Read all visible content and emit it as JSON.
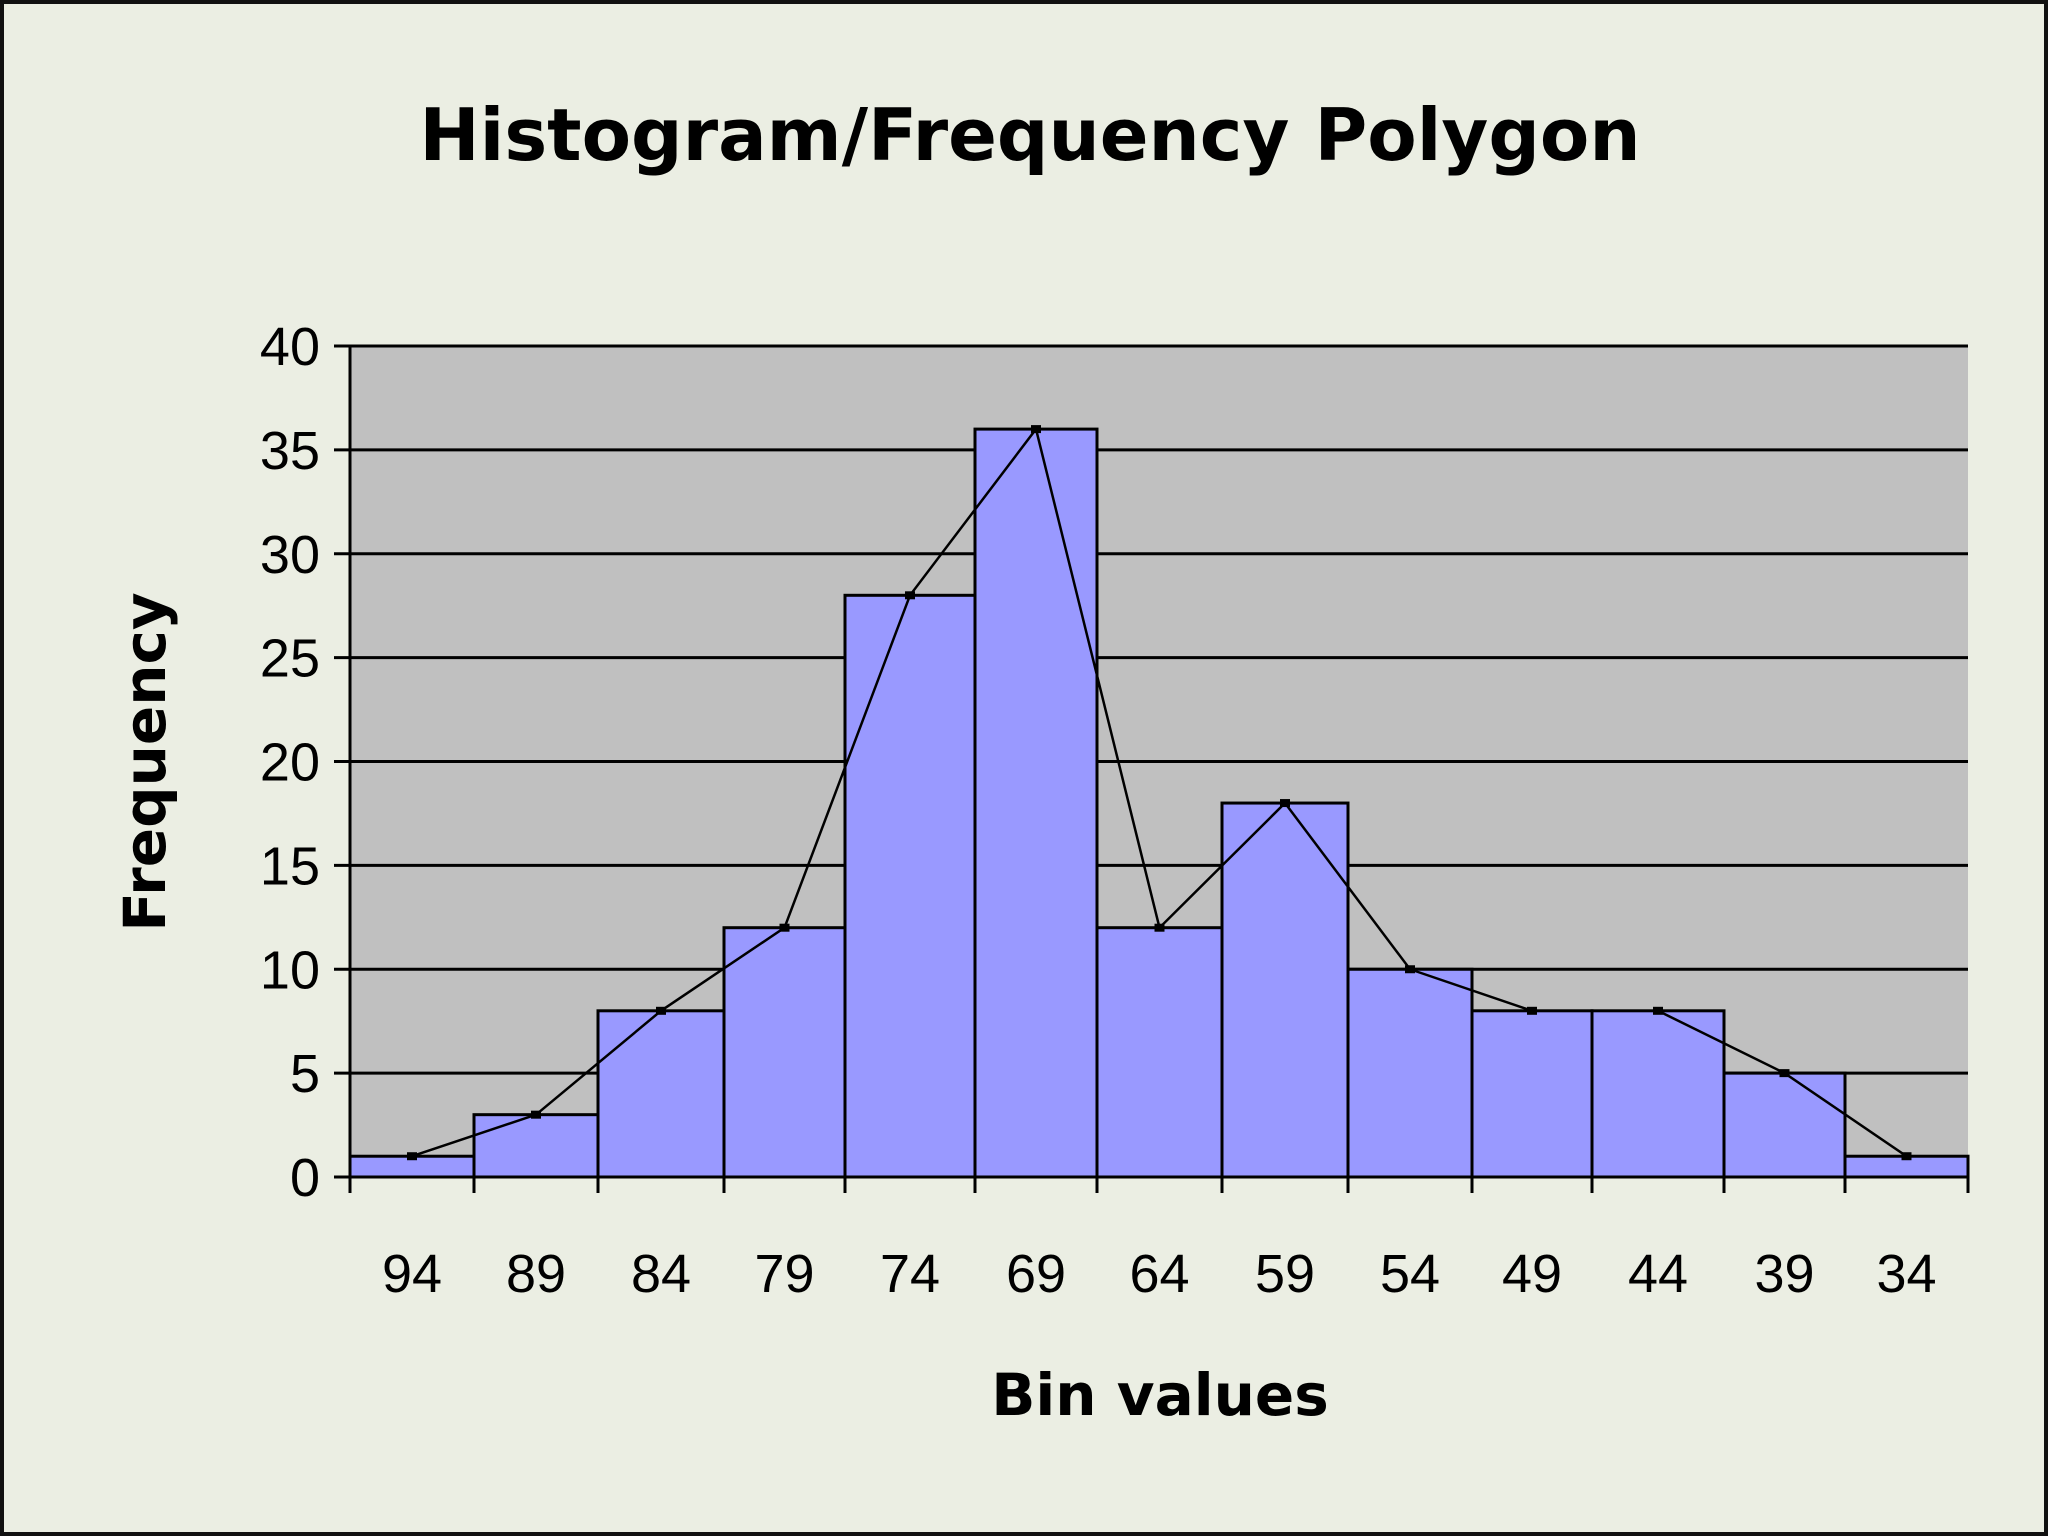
{
  "chart_data": {
    "type": "bar",
    "title": "Histogram/Frequency Polygon",
    "xlabel": "Bin values",
    "ylabel": "Frequency",
    "categories": [
      "94",
      "89",
      "84",
      "79",
      "74",
      "69",
      "64",
      "59",
      "54",
      "49",
      "44",
      "39",
      "34"
    ],
    "values": [
      1,
      3,
      8,
      12,
      28,
      36,
      12,
      18,
      10,
      8,
      8,
      5,
      1
    ],
    "overlay_line": {
      "type": "line",
      "values": [
        1,
        3,
        8,
        12,
        28,
        36,
        12,
        18,
        10,
        8,
        8,
        5,
        1
      ]
    },
    "ylim": [
      0,
      40
    ],
    "yticks": [
      "0",
      "5",
      "10",
      "15",
      "20",
      "25",
      "30",
      "35",
      "40"
    ],
    "grid": true,
    "legend": "none",
    "colors": {
      "bar_fill": "#9999ff",
      "plot_background": "#c0c0c0",
      "chart_background": "#ebeee3",
      "line": "#000000"
    }
  }
}
